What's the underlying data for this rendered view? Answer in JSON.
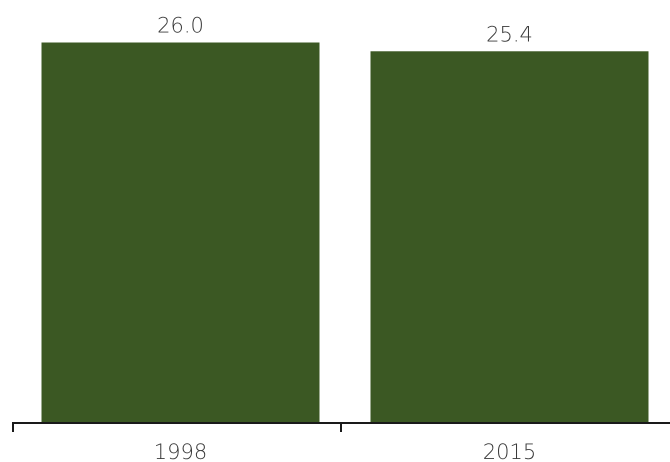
{
  "chart_data": {
    "type": "bar",
    "categories": [
      "1998",
      "2015"
    ],
    "values": [
      26.0,
      25.4
    ],
    "value_labels": [
      "26.0",
      "25.4"
    ],
    "title": "",
    "xlabel": "",
    "ylabel": "",
    "ylim": [
      0,
      27
    ],
    "grid": false,
    "legend": "none",
    "bar_color": "#3b5823",
    "axis_color": "#1a1a1a"
  }
}
